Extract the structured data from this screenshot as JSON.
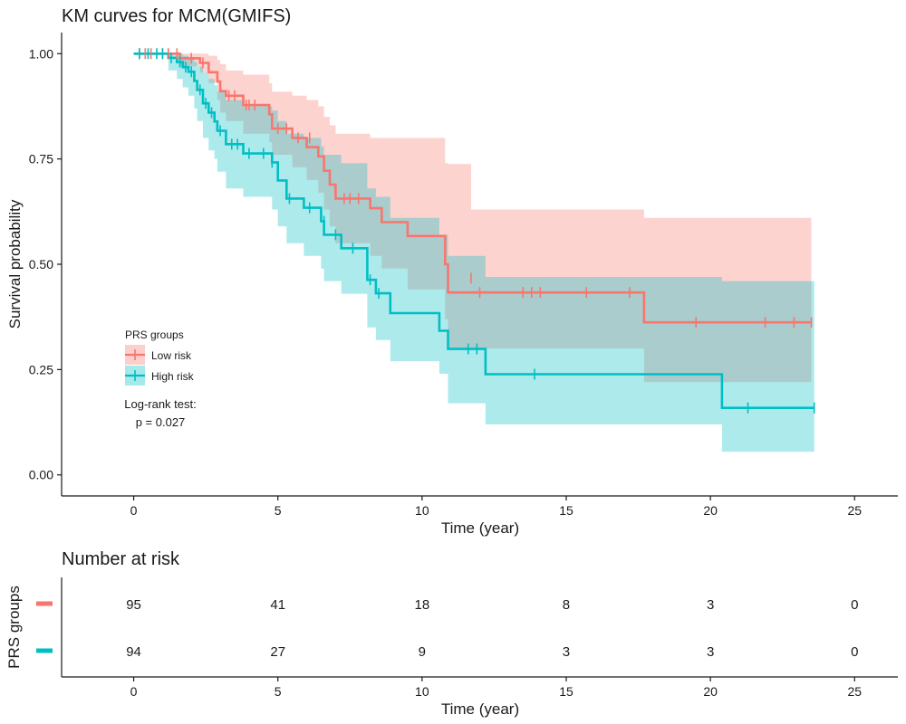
{
  "chart_data": [
    {
      "type": "line",
      "subtype": "kaplan-meier",
      "title": "KM curves for MCM(GMIFS)",
      "xlabel": "Time (year)",
      "ylabel": "Survival probability",
      "xlim": [
        -2.5,
        26.5
      ],
      "ylim": [
        -0.05,
        1.05
      ],
      "x_ticks": [
        0,
        5,
        10,
        15,
        20,
        25
      ],
      "y_ticks": [
        0,
        0.25,
        0.5,
        0.75,
        1.0
      ],
      "x_tick_labels": [
        "0",
        "5",
        "10",
        "15",
        "20",
        "25"
      ],
      "y_tick_labels": [
        "0.00",
        "0.25",
        "0.50",
        "0.75",
        "1.00"
      ],
      "grid": false,
      "legend": {
        "title": "PRS groups",
        "placement": "left-lower-inside",
        "entries": [
          "Low risk",
          "High risk"
        ]
      },
      "annotation": {
        "line1": "Log-rank test:",
        "line2": "p = 0.027"
      },
      "series": [
        {
          "name": "Low risk",
          "color": "#F8766D",
          "steps": [
            [
              0,
              1.0
            ],
            [
              1.6,
              0.989
            ],
            [
              2.3,
              0.978
            ],
            [
              2.6,
              0.956
            ],
            [
              2.9,
              0.934
            ],
            [
              3.0,
              0.911
            ],
            [
              3.2,
              0.9
            ],
            [
              3.8,
              0.878
            ],
            [
              4.7,
              0.856
            ],
            [
              4.8,
              0.822
            ],
            [
              5.5,
              0.8
            ],
            [
              6.0,
              0.778
            ],
            [
              6.4,
              0.756
            ],
            [
              6.6,
              0.722
            ],
            [
              6.8,
              0.689
            ],
            [
              7.0,
              0.656
            ],
            [
              8.2,
              0.633
            ],
            [
              8.6,
              0.6
            ],
            [
              9.5,
              0.567
            ],
            [
              10.8,
              0.5
            ],
            [
              10.9,
              0.433
            ],
            [
              11.7,
              0.433
            ],
            [
              17.7,
              0.362
            ],
            [
              23.5,
              0.362
            ]
          ],
          "censor": [
            [
              0.2,
              1.0
            ],
            [
              0.4,
              1.0
            ],
            [
              0.6,
              1.0
            ],
            [
              1.0,
              1.0
            ],
            [
              1.2,
              1.0
            ],
            [
              1.5,
              1.0
            ],
            [
              2.0,
              0.989
            ],
            [
              2.4,
              0.978
            ],
            [
              3.3,
              0.9
            ],
            [
              3.5,
              0.9
            ],
            [
              3.9,
              0.878
            ],
            [
              4.0,
              0.878
            ],
            [
              4.2,
              0.878
            ],
            [
              5.0,
              0.822
            ],
            [
              5.3,
              0.822
            ],
            [
              5.7,
              0.8
            ],
            [
              6.1,
              0.8
            ],
            [
              7.3,
              0.656
            ],
            [
              7.5,
              0.656
            ],
            [
              7.8,
              0.656
            ],
            [
              11.7,
              0.467
            ],
            [
              12.0,
              0.433
            ],
            [
              13.5,
              0.433
            ],
            [
              13.8,
              0.433
            ],
            [
              14.1,
              0.433
            ],
            [
              15.7,
              0.433
            ],
            [
              17.2,
              0.433
            ],
            [
              19.5,
              0.362
            ],
            [
              21.9,
              0.362
            ],
            [
              22.9,
              0.362
            ],
            [
              23.5,
              0.362
            ]
          ],
          "ci_steps": [
            [
              0,
              1.0,
              1.0
            ],
            [
              1.6,
              1.0,
              0.97
            ],
            [
              2.3,
              1.0,
              0.955
            ],
            [
              2.6,
              0.995,
              0.93
            ],
            [
              2.9,
              0.985,
              0.89
            ],
            [
              3.0,
              0.975,
              0.86
            ],
            [
              3.2,
              0.96,
              0.84
            ],
            [
              3.8,
              0.95,
              0.81
            ],
            [
              4.7,
              0.93,
              0.79
            ],
            [
              4.8,
              0.91,
              0.76
            ],
            [
              5.5,
              0.9,
              0.73
            ],
            [
              6.0,
              0.89,
              0.7
            ],
            [
              6.4,
              0.875,
              0.67
            ],
            [
              6.6,
              0.85,
              0.63
            ],
            [
              6.8,
              0.83,
              0.59
            ],
            [
              7.0,
              0.81,
              0.55
            ],
            [
              8.2,
              0.8,
              0.52
            ],
            [
              8.6,
              0.8,
              0.49
            ],
            [
              9.5,
              0.8,
              0.44
            ],
            [
              10.8,
              0.74,
              0.37
            ],
            [
              10.9,
              0.738,
              0.3
            ],
            [
              11.7,
              0.63,
              0.3
            ],
            [
              17.7,
              0.61,
              0.22
            ],
            [
              23.5,
              0.61,
              0.22
            ]
          ]
        },
        {
          "name": "High risk",
          "color": "#00BFC4",
          "steps": [
            [
              0,
              1.0
            ],
            [
              1.2,
              0.99
            ],
            [
              1.5,
              0.98
            ],
            [
              1.7,
              0.968
            ],
            [
              1.9,
              0.957
            ],
            [
              2.1,
              0.935
            ],
            [
              2.2,
              0.914
            ],
            [
              2.4,
              0.882
            ],
            [
              2.6,
              0.86
            ],
            [
              2.8,
              0.839
            ],
            [
              2.9,
              0.817
            ],
            [
              3.2,
              0.785
            ],
            [
              3.8,
              0.763
            ],
            [
              4.8,
              0.742
            ],
            [
              5.0,
              0.699
            ],
            [
              5.3,
              0.656
            ],
            [
              5.9,
              0.634
            ],
            [
              6.5,
              0.602
            ],
            [
              6.6,
              0.57
            ],
            [
              7.2,
              0.538
            ],
            [
              8.1,
              0.463
            ],
            [
              8.4,
              0.431
            ],
            [
              8.9,
              0.384
            ],
            [
              10.6,
              0.342
            ],
            [
              10.9,
              0.299
            ],
            [
              12.2,
              0.239
            ],
            [
              20.4,
              0.159
            ],
            [
              23.6,
              0.159
            ]
          ],
          "censor": [
            [
              0.2,
              1.0
            ],
            [
              0.5,
              1.0
            ],
            [
              0.8,
              1.0
            ],
            [
              1.0,
              1.0
            ],
            [
              1.3,
              0.99
            ],
            [
              1.6,
              0.98
            ],
            [
              1.8,
              0.968
            ],
            [
              2.0,
              0.957
            ],
            [
              2.3,
              0.914
            ],
            [
              2.5,
              0.882
            ],
            [
              2.7,
              0.86
            ],
            [
              3.0,
              0.817
            ],
            [
              3.4,
              0.785
            ],
            [
              3.6,
              0.785
            ],
            [
              4.0,
              0.763
            ],
            [
              4.5,
              0.763
            ],
            [
              4.8,
              0.742
            ],
            [
              5.4,
              0.656
            ],
            [
              6.1,
              0.634
            ],
            [
              6.6,
              0.602
            ],
            [
              7.0,
              0.57
            ],
            [
              7.6,
              0.538
            ],
            [
              8.2,
              0.463
            ],
            [
              8.5,
              0.431
            ],
            [
              11.6,
              0.299
            ],
            [
              11.9,
              0.299
            ],
            [
              13.9,
              0.239
            ],
            [
              21.3,
              0.159
            ],
            [
              23.6,
              0.159
            ]
          ],
          "ci_steps": [
            [
              0,
              1.0,
              1.0
            ],
            [
              1.2,
              1.0,
              0.96
            ],
            [
              1.5,
              1.0,
              0.94
            ],
            [
              1.7,
              0.995,
              0.92
            ],
            [
              1.9,
              0.99,
              0.9
            ],
            [
              2.1,
              0.98,
              0.87
            ],
            [
              2.2,
              0.97,
              0.84
            ],
            [
              2.4,
              0.955,
              0.8
            ],
            [
              2.6,
              0.94,
              0.77
            ],
            [
              2.8,
              0.925,
              0.75
            ],
            [
              2.9,
              0.91,
              0.72
            ],
            [
              3.2,
              0.89,
              0.68
            ],
            [
              3.8,
              0.875,
              0.66
            ],
            [
              4.8,
              0.865,
              0.63
            ],
            [
              5.0,
              0.84,
              0.59
            ],
            [
              5.3,
              0.81,
              0.55
            ],
            [
              5.9,
              0.8,
              0.52
            ],
            [
              6.5,
              0.78,
              0.49
            ],
            [
              6.6,
              0.76,
              0.46
            ],
            [
              7.2,
              0.74,
              0.43
            ],
            [
              8.1,
              0.68,
              0.35
            ],
            [
              8.4,
              0.66,
              0.32
            ],
            [
              8.9,
              0.61,
              0.27
            ],
            [
              10.6,
              0.57,
              0.24
            ],
            [
              10.9,
              0.52,
              0.17
            ],
            [
              12.2,
              0.47,
              0.12
            ],
            [
              20.4,
              0.46,
              0.055
            ],
            [
              23.6,
              0.46,
              0.055
            ]
          ]
        }
      ]
    },
    {
      "type": "table",
      "title": "Number at risk",
      "xlabel": "Time (year)",
      "ylabel": "PRS groups",
      "xlim": [
        -2.5,
        26.5
      ],
      "x_ticks": [
        0,
        5,
        10,
        15,
        20,
        25
      ],
      "x_tick_labels": [
        "0",
        "5",
        "10",
        "15",
        "20",
        "25"
      ],
      "rows": [
        {
          "name": "Low risk",
          "color": "#F8766D",
          "values": [
            "95",
            "41",
            "18",
            "8",
            "3",
            "0"
          ]
        },
        {
          "name": "High risk",
          "color": "#00BFC4",
          "values": [
            "94",
            "27",
            "9",
            "3",
            "3",
            "0"
          ]
        }
      ]
    }
  ]
}
